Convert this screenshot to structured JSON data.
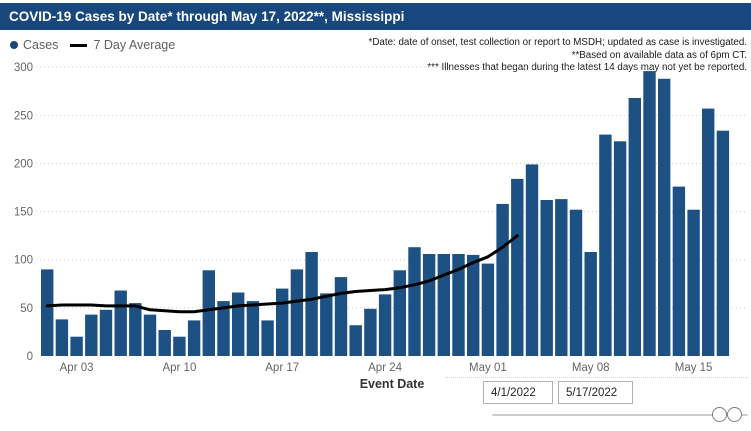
{
  "title": "COVID-19 Cases by Date* through May 17, 2022**, Mississippi",
  "legend": {
    "cases_label": "Cases",
    "avg_label": "7 Day Average"
  },
  "annotations": {
    "line1": "*Date: date of onset, test collection or report to MSDH; updated as case is investigated.",
    "line2": "**Based on available data as of 6pm CT.",
    "line3": "*** Illnesses that began during the latest 14 days may not yet be reported."
  },
  "x_axis_title": "Event Date",
  "filters": {
    "start_date": "4/1/2022",
    "end_date": "5/17/2022"
  },
  "colors": {
    "bar": "#1d5184",
    "line": "#000000",
    "titlebar": "#17477d",
    "axis_text": "#666666",
    "grid": "#d0cece"
  },
  "chart_data": {
    "type": "bar",
    "title": "COVID-19 Cases by Date* through May 17, 2022**, Mississippi",
    "xlabel": "Event Date",
    "ylabel": "",
    "ylim": [
      0,
      300
    ],
    "y_ticks": [
      0,
      50,
      100,
      150,
      200,
      250,
      300
    ],
    "grid": "horizontal-dotted",
    "legend_position": "top-left",
    "x_tick_labels": [
      "Apr 03",
      "Apr 10",
      "Apr 17",
      "Apr 24",
      "May 01",
      "May 08",
      "May 15"
    ],
    "x_tick_positions": [
      2,
      9,
      16,
      23,
      30,
      37,
      44
    ],
    "categories": [
      "Apr 01",
      "Apr 02",
      "Apr 03",
      "Apr 04",
      "Apr 05",
      "Apr 06",
      "Apr 07",
      "Apr 08",
      "Apr 09",
      "Apr 10",
      "Apr 11",
      "Apr 12",
      "Apr 13",
      "Apr 14",
      "Apr 15",
      "Apr 16",
      "Apr 17",
      "Apr 18",
      "Apr 19",
      "Apr 20",
      "Apr 21",
      "Apr 22",
      "Apr 23",
      "Apr 24",
      "Apr 25",
      "Apr 26",
      "Apr 27",
      "Apr 28",
      "Apr 29",
      "Apr 30",
      "May 01",
      "May 02",
      "May 03",
      "May 04",
      "May 05",
      "May 06",
      "May 07",
      "May 08",
      "May 09",
      "May 10",
      "May 11",
      "May 12",
      "May 13",
      "May 14",
      "May 15",
      "May 16",
      "May 17"
    ],
    "series": [
      {
        "name": "Cases",
        "type": "bar",
        "color": "#1d5184",
        "values": [
          90,
          38,
          20,
          43,
          48,
          68,
          55,
          43,
          27,
          20,
          37,
          89,
          57,
          66,
          57,
          37,
          70,
          90,
          108,
          65,
          82,
          32,
          49,
          64,
          89,
          113,
          106,
          106,
          106,
          105,
          96,
          158,
          184,
          199,
          162,
          163,
          152,
          108,
          230,
          223,
          268,
          296,
          288,
          176,
          152,
          257,
          234
        ]
      },
      {
        "name": "7 Day Average",
        "type": "line",
        "color": "#000000",
        "values": [
          52,
          53,
          53,
          53,
          52,
          52,
          52,
          48,
          47,
          46,
          46,
          48,
          50,
          52,
          53,
          54,
          55,
          57,
          59,
          62,
          65,
          67,
          68,
          69,
          71,
          74,
          78,
          84,
          90,
          97,
          103,
          113,
          125
        ]
      }
    ]
  }
}
